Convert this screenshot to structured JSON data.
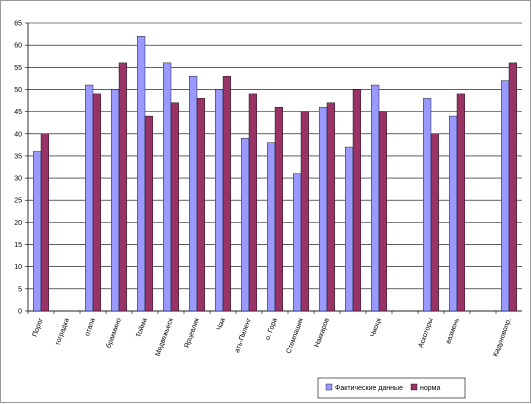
{
  "chart_data": {
    "type": "bar",
    "categories": [
      "Порог",
      "тоградка",
      "отапа",
      "бракмино",
      "Тойма",
      "Медвежьеск",
      "Ярцевлик",
      "Чаа",
      "ать-Пиленг",
      "о. Гора",
      "Стемпашик",
      "Наккаров",
      null,
      "Чиоцк",
      null,
      "Аскоторы",
      "вазмень",
      null,
      "Кадуновопр."
    ],
    "series": [
      {
        "name": "Фактические данные",
        "color": "#9999ff",
        "values": [
          36,
          null,
          51,
          50,
          62,
          56,
          53,
          50,
          39,
          38,
          31,
          46,
          37,
          51,
          null,
          48,
          44,
          null,
          52
        ]
      },
      {
        "name": "норма",
        "color": "#993366",
        "values": [
          40,
          null,
          49,
          56,
          44,
          47,
          48,
          53,
          49,
          46,
          45,
          47,
          50,
          45,
          null,
          40,
          49,
          null,
          56
        ]
      }
    ],
    "ylim": [
      0,
      65
    ],
    "yticks": [
      0,
      5,
      10,
      15,
      20,
      25,
      30,
      35,
      40,
      45,
      50,
      55,
      60,
      65
    ],
    "grid": true
  }
}
